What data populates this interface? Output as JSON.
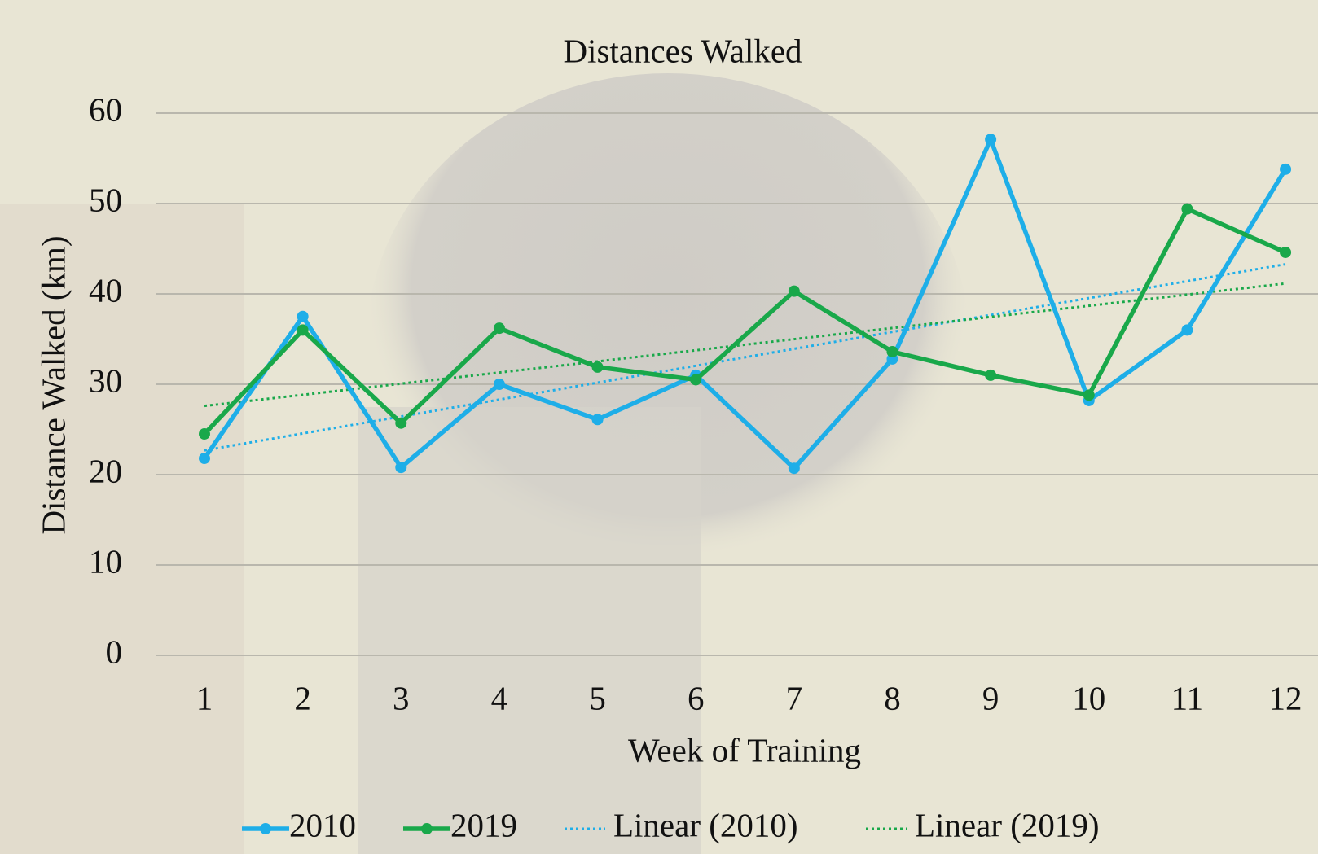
{
  "chart_data": {
    "type": "line",
    "title": "Distances Walked",
    "x_label": "Week of Training",
    "y_label": "Distance Walked (km)",
    "categories": [
      "1",
      "2",
      "3",
      "4",
      "5",
      "6",
      "7",
      "8",
      "9",
      "10",
      "11",
      "12"
    ],
    "series": [
      {
        "name": "2010",
        "color": "#1eaee8",
        "values": [
          21.8,
          37.5,
          20.8,
          30.0,
          26.1,
          31.0,
          20.7,
          32.8,
          57.1,
          28.2,
          36.0,
          53.8
        ],
        "trendline": {
          "type": "linear",
          "name": "Linear (2010)"
        }
      },
      {
        "name": "2019",
        "color": "#19a84a",
        "values": [
          24.5,
          36.0,
          25.7,
          36.2,
          31.9,
          30.5,
          40.3,
          33.6,
          31.0,
          28.8,
          49.4,
          44.6
        ],
        "trendline": {
          "type": "linear",
          "name": "Linear (2019)"
        }
      }
    ],
    "ylim": [
      0,
      60
    ],
    "yticks": [
      0,
      10,
      20,
      30,
      40,
      50,
      60
    ],
    "grid": true,
    "legend": "bottom"
  }
}
